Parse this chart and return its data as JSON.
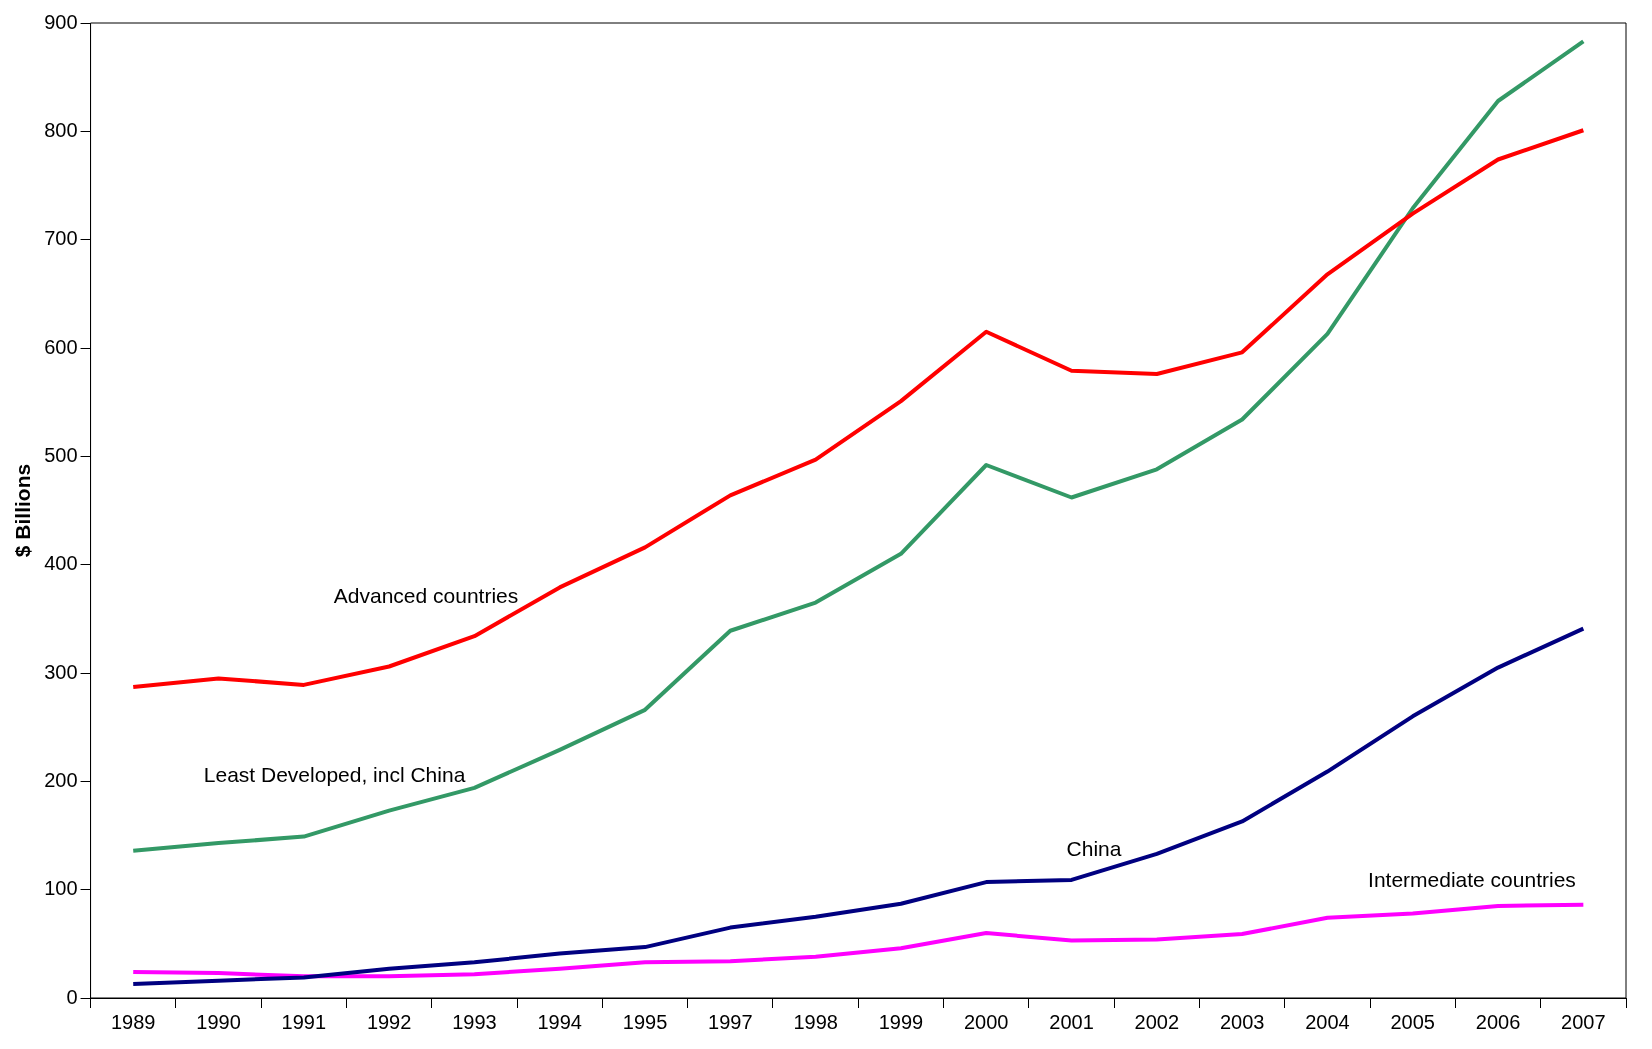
{
  "chart_data": {
    "type": "line",
    "ylabel": "$ Billions",
    "categories": [
      "1989",
      "1990",
      "1991",
      "1992",
      "1993",
      "1994",
      "1995",
      "1997",
      "1998",
      "1999",
      "2000",
      "2001",
      "2002",
      "2003",
      "2004",
      "2005",
      "2006",
      "2007"
    ],
    "series": [
      {
        "name": "Advanced countries",
        "color": "#ff0000",
        "values": [
          287,
          295,
          289,
          306,
          334,
          379,
          416,
          464,
          497,
          551,
          615,
          579,
          576,
          596,
          668,
          724,
          774,
          801
        ]
      },
      {
        "name": "Least Developed, incl China",
        "color": "#339966",
        "values": [
          136,
          143,
          149,
          173,
          194,
          229,
          266,
          339,
          365,
          410,
          492,
          462,
          488,
          534,
          613,
          729,
          828,
          883
        ]
      },
      {
        "name": "China",
        "color": "#000080",
        "values": [
          13,
          16,
          19,
          27,
          33,
          41,
          47,
          65,
          75,
          87,
          107,
          109,
          133,
          163,
          209,
          260,
          305,
          341
        ]
      },
      {
        "name": "Intermediate countries",
        "color": "#ff00ff",
        "values": [
          24,
          23,
          20,
          20,
          22,
          27,
          33,
          34,
          38,
          46,
          60,
          53,
          54,
          59,
          74,
          78,
          85,
          86
        ]
      }
    ],
    "ylim": [
      0,
      900
    ],
    "yticks": [
      0,
      100,
      200,
      300,
      400,
      500,
      600,
      700,
      800,
      900
    ],
    "grid": false,
    "legend": false,
    "marker": "none",
    "line_style": "solid"
  }
}
